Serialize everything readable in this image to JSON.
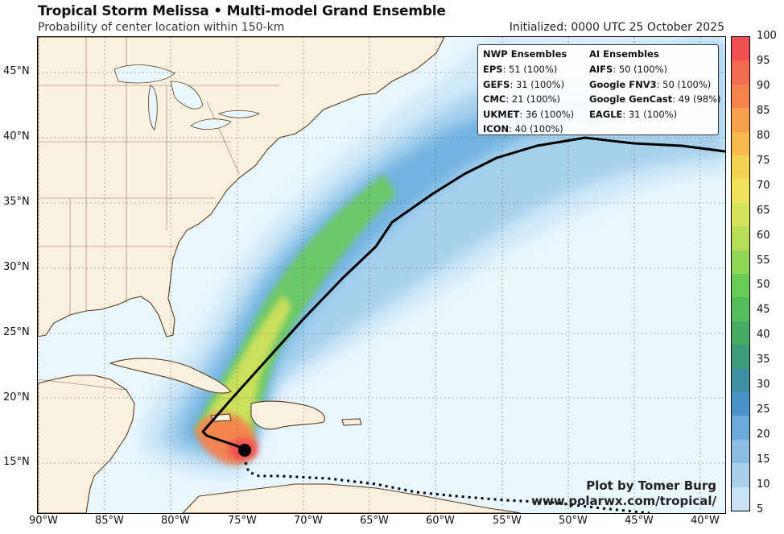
{
  "header": {
    "title": "Tropical Storm Melissa • Multi-model Grand Ensemble",
    "subtitle": "Probability of center location within 150-km",
    "initialized": "Initialized: 0000 UTC 25 October 2025"
  },
  "legend": {
    "nwp_title": "NWP Ensembles",
    "nwp": [
      {
        "name": "EPS",
        "value": "51 (100%)"
      },
      {
        "name": "GEFS",
        "value": "31 (100%)"
      },
      {
        "name": "CMC",
        "value": "21 (100%)"
      },
      {
        "name": "UKMET",
        "value": "36 (100%)"
      },
      {
        "name": "ICON",
        "value": "40 (100%)"
      }
    ],
    "ai_title": "AI Ensembles",
    "ai": [
      {
        "name": "AIFS",
        "value": "50 (100%)"
      },
      {
        "name": "Google FNV3",
        "value": "50 (100%)"
      },
      {
        "name": "Google GenCast",
        "value": "49 (98%)"
      },
      {
        "name": "EAGLE",
        "value": "31 (100%)"
      }
    ]
  },
  "credit": {
    "line1": "Plot by Tomer Burg",
    "line2": "www.polarwx.com/tropical/"
  },
  "axes": {
    "lat_labels": [
      "45°N",
      "40°N",
      "35°N",
      "30°N",
      "25°N",
      "20°N",
      "15°N"
    ],
    "lon_labels": [
      "90°W",
      "85°W",
      "80°W",
      "75°W",
      "70°W",
      "65°W",
      "60°W",
      "55°W",
      "50°W",
      "45°W",
      "40°W"
    ]
  },
  "colorbar": {
    "ticks": [
      "100",
      "95",
      "90",
      "85",
      "80",
      "75",
      "70",
      "65",
      "60",
      "55",
      "50",
      "45",
      "40",
      "35",
      "30",
      "25",
      "20",
      "15",
      "10",
      "5"
    ],
    "colors": [
      "#f25050",
      "#f46a4e",
      "#f6824c",
      "#f7a04a",
      "#f5b94d",
      "#f3d251",
      "#efe459",
      "#d6e35a",
      "#b5dd58",
      "#8fd656",
      "#6acc55",
      "#52bd5a",
      "#45ab63",
      "#3f9c7a",
      "#3e8fa0",
      "#4a93c8",
      "#6aa9d8",
      "#8bbde2",
      "#aad1ec",
      "#c8e3f4"
    ]
  },
  "map_colors": {
    "ocean": "#e8f6fd",
    "land": "#faf0e0",
    "coast": "#5a3a1a",
    "track": "#000000"
  }
}
